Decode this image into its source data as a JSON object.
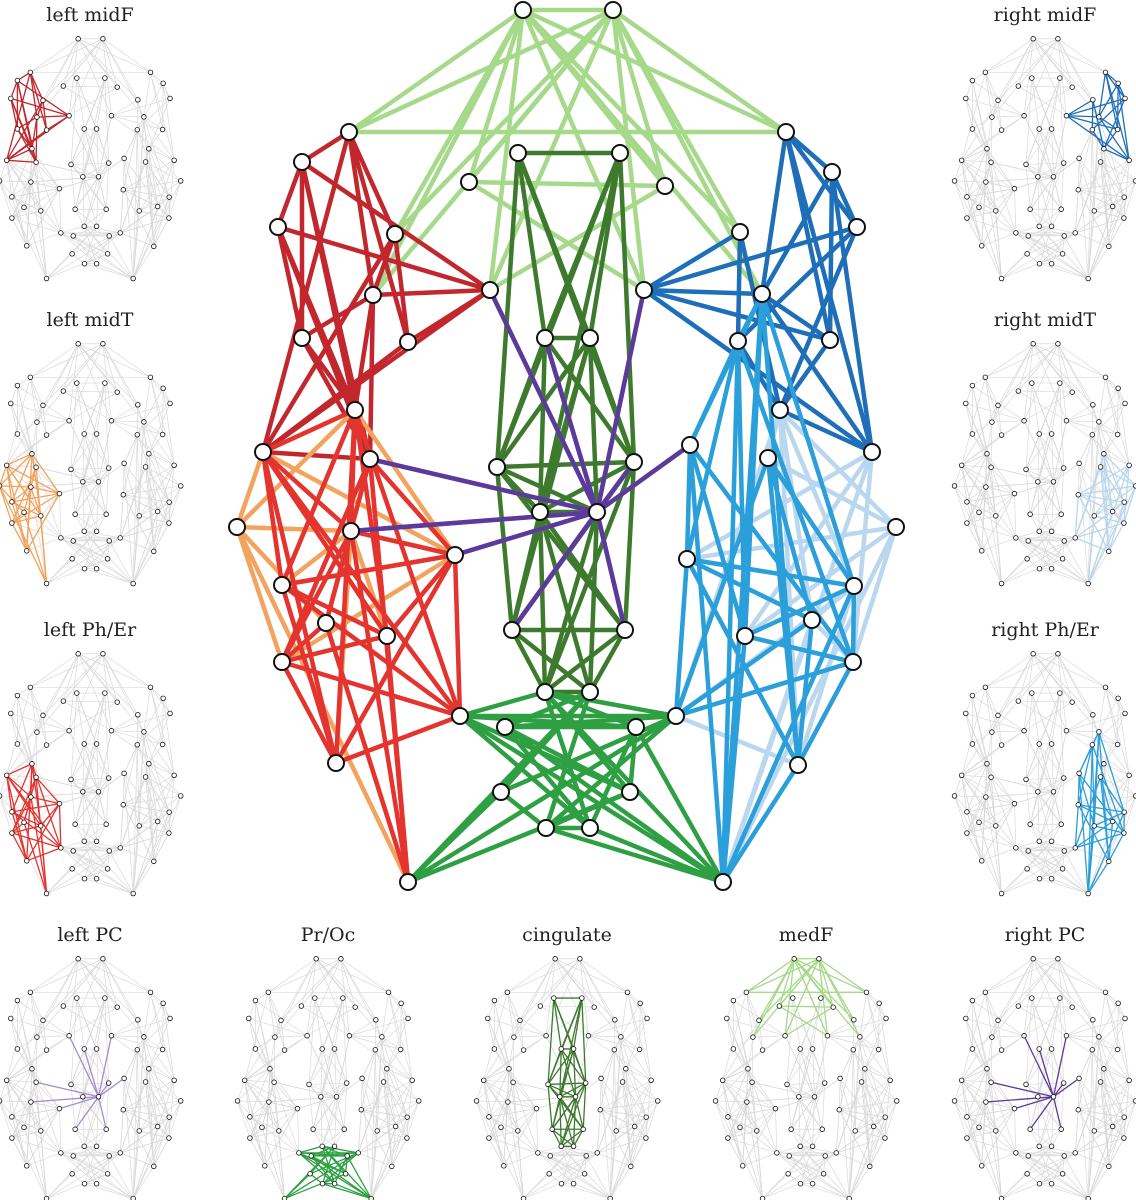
{
  "panels": [
    {
      "key": "left_midF",
      "label": "left midF",
      "color": "#c1272d"
    },
    {
      "key": "left_midT",
      "label": "left midT",
      "color": "#f2a35e"
    },
    {
      "key": "left_PhEr",
      "label": "left Ph/Er",
      "color": "#e3342f"
    },
    {
      "key": "left_PC",
      "label": "left PC",
      "color": "#a68ccf"
    },
    {
      "key": "PrOc",
      "label": "Pr/Oc",
      "color": "#2ea043"
    },
    {
      "key": "cingulate",
      "label": "cingulate",
      "color": "#3d7a2e"
    },
    {
      "key": "medF",
      "label": "medF",
      "color": "#a6d98a"
    },
    {
      "key": "right_PC",
      "label": "right PC",
      "color": "#5b3a99"
    },
    {
      "key": "right_PhEr",
      "label": "right Ph/Er",
      "color": "#2b9fd9"
    },
    {
      "key": "right_midT",
      "label": "right midT",
      "color": "#b9d7ee"
    },
    {
      "key": "right_midF",
      "label": "right midF",
      "color": "#1f6fb8"
    }
  ]
}
